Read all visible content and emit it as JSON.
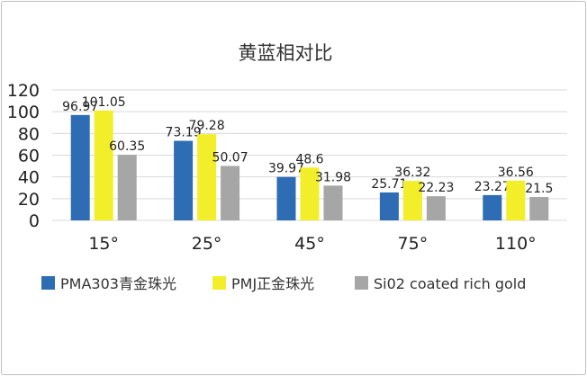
{
  "chart_data": {
    "type": "bar",
    "title": "黄蓝相对比",
    "categories": [
      "15°",
      "25°",
      "45°",
      "75°",
      "110°"
    ],
    "series": [
      {
        "name": "PMA303青金珠光",
        "color": "#2e6db4",
        "values": [
          96.97,
          73.19,
          39.97,
          25.71,
          23.27
        ],
        "labels": [
          "96.97",
          "73.19",
          "39.97",
          "25.71",
          "23.27"
        ]
      },
      {
        "name": "PMJ正金珠光",
        "color": "#f2ee2a",
        "values": [
          101.05,
          79.28,
          48.6,
          36.32,
          36.56
        ],
        "labels": [
          "101.05",
          "79.28",
          "48.6",
          "36.32",
          "36.56"
        ]
      },
      {
        "name": "Si02 coated rich gold",
        "color": "#a6a6a6",
        "values": [
          60.35,
          50.07,
          31.98,
          22.23,
          21.5
        ],
        "labels": [
          "60.35",
          "50.07",
          "31.98",
          "22.23",
          "21.5"
        ]
      }
    ],
    "yticks": [
      "0",
      "20",
      "40",
      "60",
      "80",
      "100",
      "120"
    ],
    "ylim": [
      0,
      120
    ],
    "grid": true,
    "legend": "bottom"
  }
}
